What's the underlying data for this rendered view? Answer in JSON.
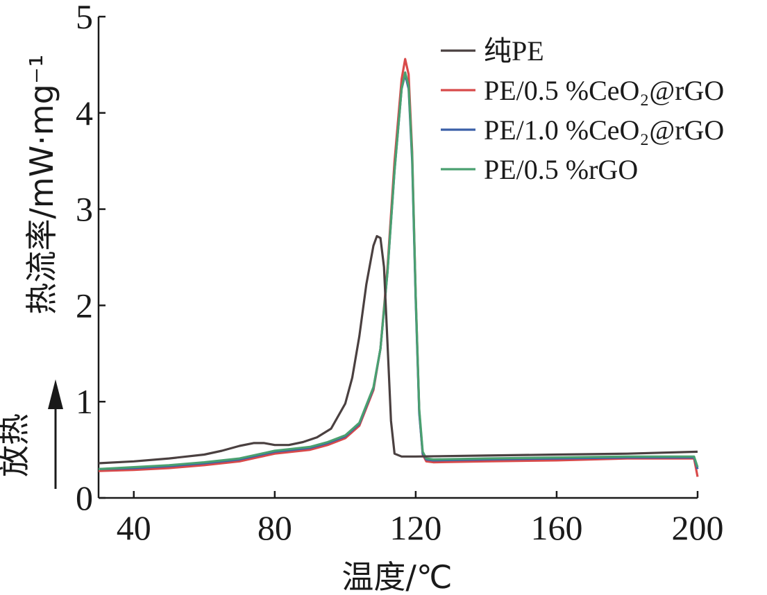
{
  "chart_data": {
    "type": "line",
    "title": "",
    "xlabel": "温度/℃",
    "ylabel": "热流率/mW·mg⁻¹",
    "exo_label": "放热",
    "xlim": [
      30,
      200
    ],
    "ylim": [
      0,
      5
    ],
    "xticks": [
      "40",
      "80",
      "120",
      "160",
      "200"
    ],
    "yticks": [
      "0",
      "1",
      "2",
      "3",
      "4",
      "5"
    ],
    "grid": false,
    "legend_position": "top-right",
    "series": [
      {
        "name": "纯PE",
        "color": "#4a4040",
        "x": [
          30,
          40,
          50,
          60,
          65,
          70,
          74,
          77,
          80,
          84,
          88,
          92,
          96,
          100,
          102,
          104,
          106,
          108,
          109,
          110,
          111,
          112,
          113,
          114,
          116,
          120,
          140,
          160,
          180,
          200
        ],
        "y": [
          0.36,
          0.38,
          0.41,
          0.45,
          0.49,
          0.54,
          0.57,
          0.57,
          0.55,
          0.55,
          0.58,
          0.63,
          0.72,
          0.98,
          1.25,
          1.68,
          2.22,
          2.62,
          2.72,
          2.7,
          2.4,
          1.6,
          0.8,
          0.46,
          0.43,
          0.43,
          0.44,
          0.45,
          0.46,
          0.48
        ]
      },
      {
        "name": "PE/0.5 %CeO₂@rGO",
        "color": "#d84a4a",
        "x": [
          30,
          40,
          50,
          60,
          70,
          75,
          80,
          85,
          90,
          95,
          100,
          104,
          108,
          110,
          112,
          114,
          116,
          117,
          118,
          119,
          120,
          121,
          122,
          123,
          125,
          140,
          160,
          180,
          199,
          200
        ],
        "y": [
          0.28,
          0.29,
          0.31,
          0.34,
          0.38,
          0.42,
          0.46,
          0.48,
          0.5,
          0.55,
          0.62,
          0.75,
          1.12,
          1.55,
          2.4,
          3.5,
          4.35,
          4.56,
          4.4,
          3.6,
          2.1,
          0.9,
          0.45,
          0.38,
          0.37,
          0.38,
          0.39,
          0.41,
          0.41,
          0.22
        ]
      },
      {
        "name": "PE/1.0 %CeO₂@rGO",
        "color": "#3a5fa8",
        "x": [
          30,
          40,
          50,
          60,
          70,
          75,
          80,
          85,
          90,
          95,
          100,
          104,
          108,
          110,
          112,
          114,
          116,
          117,
          118,
          119,
          120,
          121,
          122,
          123,
          125,
          140,
          160,
          180,
          199,
          200
        ],
        "y": [
          0.3,
          0.31,
          0.33,
          0.36,
          0.4,
          0.44,
          0.48,
          0.5,
          0.52,
          0.57,
          0.64,
          0.77,
          1.14,
          1.55,
          2.35,
          3.4,
          4.25,
          4.4,
          4.25,
          3.5,
          2.05,
          0.88,
          0.46,
          0.4,
          0.39,
          0.4,
          0.41,
          0.42,
          0.42,
          0.3
        ]
      },
      {
        "name": "PE/0.5 %rGO",
        "color": "#4aa070",
        "x": [
          30,
          40,
          50,
          60,
          70,
          75,
          80,
          85,
          90,
          95,
          100,
          104,
          108,
          110,
          112,
          114,
          116,
          117,
          118,
          119,
          120,
          121,
          122,
          123,
          125,
          140,
          160,
          180,
          199,
          200
        ],
        "y": [
          0.3,
          0.32,
          0.34,
          0.37,
          0.41,
          0.45,
          0.49,
          0.51,
          0.53,
          0.58,
          0.65,
          0.78,
          1.15,
          1.55,
          2.35,
          3.4,
          4.25,
          4.42,
          4.28,
          3.55,
          2.1,
          0.92,
          0.48,
          0.41,
          0.4,
          0.41,
          0.42,
          0.43,
          0.43,
          0.32
        ]
      }
    ]
  }
}
